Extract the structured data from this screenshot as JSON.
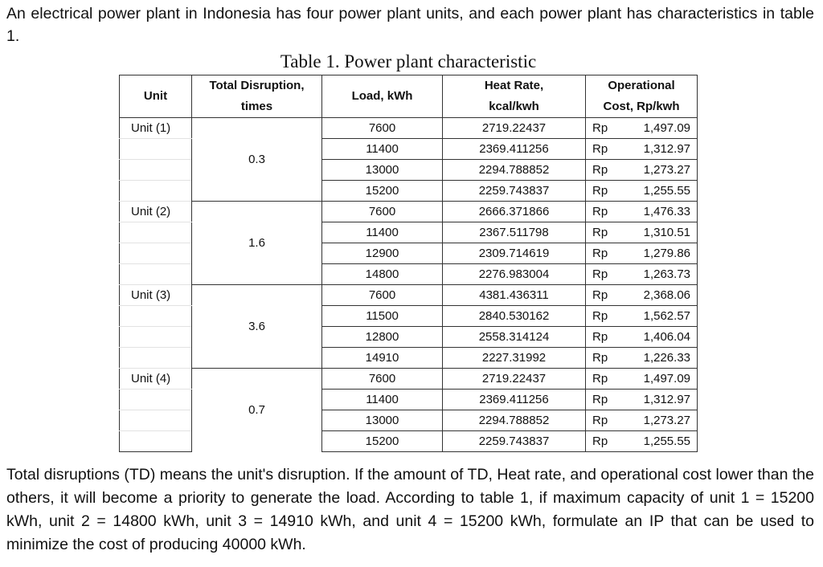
{
  "intro": "An electrical power plant in Indonesia has four power plant units, and each power plant has characteristics in table 1.",
  "caption": "Table 1. Power plant characteristic",
  "headers": {
    "unit": "Unit",
    "td1": "Total Disruption,",
    "td2": "times",
    "load": "Load, kWh",
    "hr1": "Heat Rate,",
    "hr2": "kcal/kwh",
    "oc1": "Operational",
    "oc2": "Cost, Rp/kwh"
  },
  "currency": "Rp",
  "units": [
    {
      "name": "Unit (1)",
      "td": "0.3",
      "rows": [
        [
          "7600",
          "2719.22437",
          "1,497.09"
        ],
        [
          "11400",
          "2369.411256",
          "1,312.97"
        ],
        [
          "13000",
          "2294.788852",
          "1,273.27"
        ],
        [
          "15200",
          "2259.743837",
          "1,255.55"
        ]
      ]
    },
    {
      "name": "Unit (2)",
      "td": "1.6",
      "rows": [
        [
          "7600",
          "2666.371866",
          "1,476.33"
        ],
        [
          "11400",
          "2367.511798",
          "1,310.51"
        ],
        [
          "12900",
          "2309.714619",
          "1,279.86"
        ],
        [
          "14800",
          "2276.983004",
          "1,263.73"
        ]
      ]
    },
    {
      "name": "Unit (3)",
      "td": "3.6",
      "rows": [
        [
          "7600",
          "4381.436311",
          "2,368.06"
        ],
        [
          "11500",
          "2840.530162",
          "1,562.57"
        ],
        [
          "12800",
          "2558.314124",
          "1,406.04"
        ],
        [
          "14910",
          "2227.31992",
          "1,226.33"
        ]
      ]
    },
    {
      "name": "Unit (4)",
      "td": "0.7",
      "rows": [
        [
          "7600",
          "2719.22437",
          "1,497.09"
        ],
        [
          "11400",
          "2369.411256",
          "1,312.97"
        ],
        [
          "13000",
          "2294.788852",
          "1,273.27"
        ],
        [
          "15200",
          "2259.743837",
          "1,255.55"
        ]
      ]
    }
  ],
  "outro": "Total disruptions (TD) means the unit's disruption. If the amount of TD, Heat rate, and operational cost lower than the others, it will become a priority to generate the load. According to table 1, if maximum capacity of unit 1 = 15200 kWh, unit 2 = 14800 kWh, unit 3 = 14910 kWh, and unit 4 = 15200 kWh, formulate an IP that can be used to minimize the cost of producing 40000 kWh."
}
